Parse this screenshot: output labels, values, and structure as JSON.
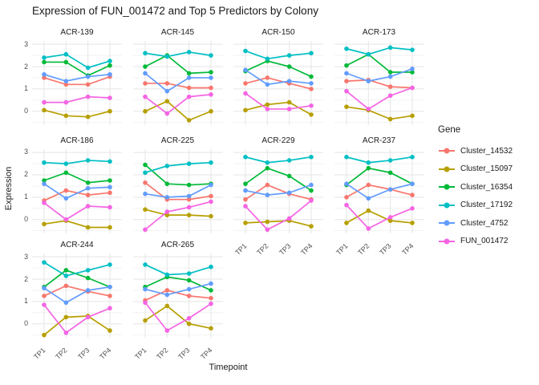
{
  "title": "Expression of FUN_001472 and Top 5 Predictors by Colony",
  "axes": {
    "x_title": "Timepoint",
    "y_title": "Expression",
    "x_tick_labels": [
      "TP1",
      "TP2",
      "TP3",
      "TP4"
    ],
    "y_tick_labels": [
      "3",
      "2",
      "1",
      "0"
    ]
  },
  "legend": {
    "title": "Gene",
    "entries": [
      {
        "label": "Cluster_14532",
        "color": "#F8766D"
      },
      {
        "label": "Cluster_15097",
        "color": "#B79F00"
      },
      {
        "label": "Cluster_16354",
        "color": "#00BA38"
      },
      {
        "label": "Cluster_17192",
        "color": "#00BFC4"
      },
      {
        "label": "Cluster_4752",
        "color": "#619CFF"
      },
      {
        "label": "FUN_001472",
        "color": "#F564E3"
      }
    ]
  },
  "chart_data": {
    "type": "line",
    "facet_by": "Colony",
    "x": [
      "TP1",
      "TP2",
      "TP3",
      "TP4"
    ],
    "xlabel": "Timepoint",
    "ylabel": "Expression",
    "ylim": [
      -0.62,
      3.15
    ],
    "y_major_gridlines": [
      3,
      2,
      1,
      0
    ],
    "y_minor_gridlines": [
      2.5,
      1.5,
      0.5,
      -0.5
    ],
    "grid": true,
    "legend_position": "right",
    "facets": [
      {
        "colony": "ACR-139",
        "series": [
          {
            "name": "Cluster_14532",
            "values": [
              1.5,
              1.2,
              1.2,
              1.55
            ]
          },
          {
            "name": "Cluster_15097",
            "values": [
              0.05,
              -0.2,
              -0.25,
              0.0
            ]
          },
          {
            "name": "Cluster_16354",
            "values": [
              2.2,
              2.2,
              1.6,
              2.05
            ]
          },
          {
            "name": "Cluster_17192",
            "values": [
              2.4,
              2.55,
              1.95,
              2.25
            ]
          },
          {
            "name": "Cluster_4752",
            "values": [
              1.65,
              1.35,
              1.55,
              1.65
            ]
          },
          {
            "name": "FUN_001472",
            "values": [
              0.4,
              0.4,
              0.65,
              0.6
            ]
          }
        ]
      },
      {
        "colony": "ACR-145",
        "series": [
          {
            "name": "Cluster_14532",
            "values": [
              1.25,
              1.25,
              1.05,
              1.05
            ]
          },
          {
            "name": "Cluster_15097",
            "values": [
              0.0,
              0.45,
              -0.4,
              0.0
            ]
          },
          {
            "name": "Cluster_16354",
            "values": [
              2.0,
              2.5,
              1.7,
              1.75
            ]
          },
          {
            "name": "Cluster_17192",
            "values": [
              2.6,
              2.45,
              2.65,
              2.5
            ]
          },
          {
            "name": "Cluster_4752",
            "values": [
              1.7,
              0.9,
              1.5,
              1.5
            ]
          },
          {
            "name": "FUN_001472",
            "values": [
              0.65,
              -0.1,
              0.65,
              0.75
            ]
          }
        ]
      },
      {
        "colony": "ACR-150",
        "series": [
          {
            "name": "Cluster_14532",
            "values": [
              1.25,
              1.5,
              1.25,
              1.0
            ]
          },
          {
            "name": "Cluster_15097",
            "values": [
              0.05,
              0.3,
              0.4,
              -0.15
            ]
          },
          {
            "name": "Cluster_16354",
            "values": [
              1.8,
              2.25,
              2.0,
              1.55
            ]
          },
          {
            "name": "Cluster_17192",
            "values": [
              2.7,
              2.35,
              2.5,
              2.6
            ]
          },
          {
            "name": "Cluster_4752",
            "values": [
              1.85,
              1.2,
              1.35,
              1.25
            ]
          },
          {
            "name": "FUN_001472",
            "values": [
              0.8,
              0.1,
              0.1,
              0.25
            ]
          }
        ]
      },
      {
        "colony": "ACR-173",
        "series": [
          {
            "name": "Cluster_14532",
            "values": [
              1.35,
              1.4,
              1.1,
              1.05
            ]
          },
          {
            "name": "Cluster_15097",
            "values": [
              0.2,
              0.05,
              -0.35,
              -0.2
            ]
          },
          {
            "name": "Cluster_16354",
            "values": [
              2.05,
              2.55,
              1.75,
              1.75
            ]
          },
          {
            "name": "Cluster_17192",
            "values": [
              2.8,
              2.55,
              2.85,
              2.75
            ]
          },
          {
            "name": "Cluster_4752",
            "values": [
              1.7,
              1.35,
              1.55,
              1.9
            ]
          },
          {
            "name": "FUN_001472",
            "values": [
              0.9,
              0.1,
              0.7,
              1.05
            ]
          }
        ]
      },
      {
        "colony": "ACR-186",
        "series": [
          {
            "name": "Cluster_14532",
            "values": [
              0.85,
              1.3,
              1.1,
              1.2
            ]
          },
          {
            "name": "Cluster_15097",
            "values": [
              -0.2,
              -0.05,
              -0.35,
              -0.35
            ]
          },
          {
            "name": "Cluster_16354",
            "values": [
              1.75,
              2.1,
              1.65,
              1.75
            ]
          },
          {
            "name": "Cluster_17192",
            "values": [
              2.55,
              2.5,
              2.65,
              2.6
            ]
          },
          {
            "name": "Cluster_4752",
            "values": [
              1.6,
              0.95,
              1.4,
              1.45
            ]
          },
          {
            "name": "FUN_001472",
            "values": [
              0.75,
              0.0,
              0.6,
              0.55
            ]
          }
        ]
      },
      {
        "colony": "ACR-225",
        "series": [
          {
            "name": "Cluster_14532",
            "values": [
              1.65,
              0.9,
              0.9,
              1.05
            ]
          },
          {
            "name": "Cluster_15097",
            "values": [
              0.45,
              0.2,
              0.2,
              0.15
            ]
          },
          {
            "name": "Cluster_16354",
            "values": [
              2.45,
              1.6,
              1.55,
              1.6
            ]
          },
          {
            "name": "Cluster_17192",
            "values": [
              2.1,
              2.4,
              2.5,
              2.55
            ]
          },
          {
            "name": "Cluster_4752",
            "values": [
              1.15,
              1.0,
              1.05,
              1.55
            ]
          },
          {
            "name": "FUN_001472",
            "values": [
              -0.45,
              0.35,
              0.55,
              0.8
            ]
          }
        ]
      },
      {
        "colony": "ACR-229",
        "series": [
          {
            "name": "Cluster_14532",
            "values": [
              0.9,
              1.55,
              1.15,
              0.9
            ]
          },
          {
            "name": "Cluster_15097",
            "values": [
              -0.15,
              -0.1,
              -0.05,
              -0.3
            ]
          },
          {
            "name": "Cluster_16354",
            "values": [
              1.6,
              2.3,
              1.95,
              1.3
            ]
          },
          {
            "name": "Cluster_17192",
            "values": [
              2.8,
              2.55,
              2.65,
              2.8
            ]
          },
          {
            "name": "Cluster_4752",
            "values": [
              1.3,
              1.1,
              1.2,
              1.55
            ]
          },
          {
            "name": "FUN_001472",
            "values": [
              0.6,
              -0.45,
              0.05,
              0.85
            ]
          }
        ]
      },
      {
        "colony": "ACR-237",
        "series": [
          {
            "name": "Cluster_14532",
            "values": [
              1.0,
              1.55,
              1.35,
              1.1
            ]
          },
          {
            "name": "Cluster_15097",
            "values": [
              -0.15,
              0.4,
              -0.05,
              -0.15
            ]
          },
          {
            "name": "Cluster_16354",
            "values": [
              1.55,
              2.3,
              2.1,
              1.6
            ]
          },
          {
            "name": "Cluster_17192",
            "values": [
              2.8,
              2.55,
              2.65,
              2.8
            ]
          },
          {
            "name": "Cluster_4752",
            "values": [
              1.6,
              0.95,
              1.35,
              1.6
            ]
          },
          {
            "name": "FUN_001472",
            "values": [
              0.65,
              -0.4,
              0.1,
              0.5
            ]
          }
        ]
      },
      {
        "colony": "ACR-244",
        "series": [
          {
            "name": "Cluster_14532",
            "values": [
              1.25,
              1.7,
              1.45,
              1.25
            ]
          },
          {
            "name": "Cluster_15097",
            "values": [
              -0.5,
              0.3,
              0.35,
              -0.3
            ]
          },
          {
            "name": "Cluster_16354",
            "values": [
              1.65,
              2.4,
              2.05,
              1.65
            ]
          },
          {
            "name": "Cluster_17192",
            "values": [
              2.75,
              2.15,
              2.4,
              2.65
            ]
          },
          {
            "name": "Cluster_4752",
            "values": [
              1.6,
              0.95,
              1.5,
              1.65
            ]
          },
          {
            "name": "FUN_001472",
            "values": [
              0.85,
              -0.4,
              0.3,
              0.7
            ]
          }
        ]
      },
      {
        "colony": "ACR-265",
        "series": [
          {
            "name": "Cluster_14532",
            "values": [
              1.05,
              1.5,
              1.25,
              1.15
            ]
          },
          {
            "name": "Cluster_15097",
            "values": [
              0.15,
              0.8,
              0.0,
              -0.2
            ]
          },
          {
            "name": "Cluster_16354",
            "values": [
              1.65,
              2.1,
              1.95,
              1.5
            ]
          },
          {
            "name": "Cluster_17192",
            "values": [
              2.65,
              2.2,
              2.25,
              2.55
            ]
          },
          {
            "name": "Cluster_4752",
            "values": [
              1.55,
              1.3,
              1.55,
              1.8
            ]
          },
          {
            "name": "FUN_001472",
            "values": [
              0.95,
              -0.3,
              0.25,
              0.9
            ]
          }
        ]
      }
    ]
  }
}
